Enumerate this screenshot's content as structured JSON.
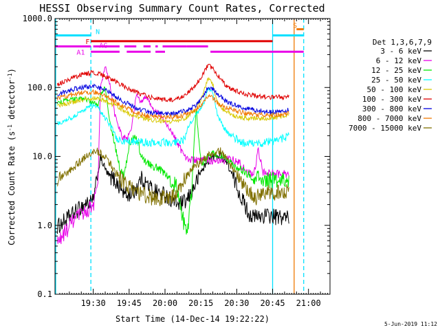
{
  "chart_data": {
    "type": "line",
    "title": "HESSI Observing Summary Count Rates, Corrected",
    "xlabel": "Start Time (14-Dec-14 19:22:22)",
    "ylabel_prefix": "Corrected Count Rate (s",
    "ylabel_sup1": "-1",
    "ylabel_mid": " detector",
    "ylabel_sup2": "-1",
    "ylabel_suffix": ")",
    "yscale": "log",
    "ylim": [
      0.1,
      1000
    ],
    "xlim_minutes": [
      -8,
      107
    ],
    "x_unit": "minutes after 19:22:22",
    "x_ticks": [
      {
        "m": 8,
        "label": "19:30"
      },
      {
        "m": 23,
        "label": "19:45"
      },
      {
        "m": 38,
        "label": "20:00"
      },
      {
        "m": 53,
        "label": "20:15"
      },
      {
        "m": 68,
        "label": "20:30"
      },
      {
        "m": 83,
        "label": "20:45"
      },
      {
        "m": 98,
        "label": "21:00"
      }
    ],
    "y_ticks": [
      {
        "v": 0.1,
        "label": "0.1"
      },
      {
        "v": 1,
        "label": "1.0"
      },
      {
        "v": 10,
        "label": "10.0"
      },
      {
        "v": 100,
        "label": "100.0"
      },
      {
        "v": 1000,
        "label": "1000.0"
      }
    ],
    "legend": {
      "header": "Det 1,3,6,7,9",
      "placement": "right",
      "entries": [
        {
          "name": "3 - 6 keV",
          "color": "#000000"
        },
        {
          "name": "6 - 12 keV",
          "color": "#e800e8"
        },
        {
          "name": "12 - 25 keV",
          "color": "#00e800"
        },
        {
          "name": "25 - 50 keV",
          "color": "#00ffff"
        },
        {
          "name": "50 - 100 keV",
          "color": "#d8c800"
        },
        {
          "name": "100 - 300 keV",
          "color": "#e00000"
        },
        {
          "name": "300 - 800 keV",
          "color": "#0000e0"
        },
        {
          "name": "800 - 7000 keV",
          "color": "#f07800"
        },
        {
          "name": "7000 - 15000 keV",
          "color": "#807000"
        }
      ]
    },
    "series": [
      {
        "name": "3 - 6 keV",
        "color": "#000000",
        "points": [
          [
            -7,
            0.95
          ],
          [
            5,
            2.1
          ],
          [
            8,
            2.2
          ],
          [
            11,
            9.5
          ],
          [
            14,
            5.5
          ],
          [
            17,
            4.5
          ],
          [
            20,
            3.2
          ],
          [
            22,
            2.7
          ],
          [
            25,
            3.0
          ],
          [
            28,
            4.8
          ],
          [
            31,
            3.8
          ],
          [
            35,
            3.0
          ],
          [
            38,
            2.8
          ],
          [
            41,
            2.3
          ],
          [
            44,
            2.0
          ],
          [
            47,
            2.2
          ],
          [
            50,
            3.5
          ],
          [
            53,
            6.0
          ],
          [
            57,
            9.5
          ],
          [
            61,
            10.5
          ],
          [
            64,
            8.0
          ],
          [
            67,
            4.5
          ],
          [
            70,
            2.5
          ],
          [
            73,
            1.5
          ],
          [
            75,
            1.3
          ],
          [
            80,
            1.4
          ],
          [
            85,
            1.3
          ],
          [
            90,
            1.3
          ]
        ]
      },
      {
        "name": "6 - 12 keV",
        "color": "#e800e8",
        "points": [
          [
            -7,
            0.55
          ],
          [
            0,
            1.2
          ],
          [
            5,
            1.6
          ],
          [
            8,
            2.0
          ],
          [
            10,
            4.0
          ],
          [
            11,
            100
          ],
          [
            13,
            200
          ],
          [
            15,
            110
          ],
          [
            17,
            40
          ],
          [
            20,
            20
          ],
          [
            22,
            17
          ],
          [
            24,
            25
          ],
          [
            26,
            80
          ],
          [
            28,
            60
          ],
          [
            30,
            75
          ],
          [
            33,
            50
          ],
          [
            36,
            40
          ],
          [
            40,
            25
          ],
          [
            45,
            12
          ],
          [
            48,
            9
          ],
          [
            52,
            8.5
          ],
          [
            55,
            9
          ],
          [
            58,
            8.8
          ],
          [
            62,
            9
          ],
          [
            66,
            9
          ],
          [
            69,
            8
          ],
          [
            72,
            6
          ],
          [
            75,
            5.5
          ],
          [
            77,
            12
          ],
          [
            79,
            6
          ],
          [
            85,
            5.5
          ],
          [
            90,
            5.5
          ]
        ]
      },
      {
        "name": "12 - 25 keV",
        "color": "#00e800",
        "points": [
          [
            -7,
            60
          ],
          [
            0,
            68
          ],
          [
            5,
            68
          ],
          [
            8,
            60
          ],
          [
            10,
            55
          ],
          [
            11,
            80
          ],
          [
            13,
            100
          ],
          [
            15,
            30
          ],
          [
            17,
            15
          ],
          [
            19,
            7
          ],
          [
            21,
            5
          ],
          [
            23,
            15
          ],
          [
            25,
            20
          ],
          [
            27,
            15
          ],
          [
            28,
            10
          ],
          [
            31,
            8
          ],
          [
            34,
            7
          ],
          [
            37,
            6
          ],
          [
            40,
            5
          ],
          [
            43,
            3.5
          ],
          [
            45,
            1.5
          ],
          [
            47,
            0.7
          ],
          [
            49,
            2.5
          ],
          [
            51,
            50
          ],
          [
            53,
            8
          ],
          [
            56,
            10
          ],
          [
            59,
            11
          ],
          [
            62,
            10
          ],
          [
            65,
            8
          ],
          [
            68,
            7
          ],
          [
            71,
            6
          ],
          [
            75,
            5
          ],
          [
            80,
            4.5
          ],
          [
            85,
            4.5
          ],
          [
            90,
            4.5
          ]
        ]
      },
      {
        "name": "25 - 50 keV",
        "color": "#00ffff",
        "points": [
          [
            -7,
            30
          ],
          [
            0,
            38
          ],
          [
            5,
            50
          ],
          [
            8,
            55
          ],
          [
            10,
            50
          ],
          [
            12,
            40
          ],
          [
            14,
            32
          ],
          [
            16,
            25
          ],
          [
            18,
            18
          ],
          [
            20,
            16
          ],
          [
            23,
            17
          ],
          [
            26,
            16
          ],
          [
            30,
            16
          ],
          [
            35,
            16
          ],
          [
            40,
            16
          ],
          [
            44,
            16
          ],
          [
            46,
            18
          ],
          [
            48,
            28
          ],
          [
            50,
            35
          ],
          [
            54,
            55
          ],
          [
            56,
            100
          ],
          [
            58,
            80
          ],
          [
            60,
            40
          ],
          [
            62,
            28
          ],
          [
            65,
            20
          ],
          [
            70,
            16
          ],
          [
            75,
            15
          ],
          [
            80,
            16
          ],
          [
            85,
            17
          ],
          [
            90,
            20
          ]
        ]
      },
      {
        "name": "50 - 100 keV",
        "color": "#d8c800",
        "points": [
          [
            -7,
            55
          ],
          [
            0,
            62
          ],
          [
            5,
            68
          ],
          [
            8,
            70
          ],
          [
            11,
            68
          ],
          [
            14,
            62
          ],
          [
            17,
            55
          ],
          [
            20,
            48
          ],
          [
            23,
            42
          ],
          [
            26,
            38
          ],
          [
            29,
            36
          ],
          [
            32,
            34
          ],
          [
            36,
            33
          ],
          [
            40,
            32
          ],
          [
            44,
            33
          ],
          [
            48,
            38
          ],
          [
            51,
            48
          ],
          [
            54,
            80
          ],
          [
            56,
            140
          ],
          [
            58,
            110
          ],
          [
            60,
            60
          ],
          [
            63,
            45
          ],
          [
            67,
            38
          ],
          [
            72,
            36
          ],
          [
            77,
            35
          ],
          [
            82,
            36
          ],
          [
            87,
            38
          ],
          [
            90,
            40
          ]
        ]
      },
      {
        "name": "100 - 300 keV",
        "color": "#e00000",
        "points": [
          [
            -7,
            110
          ],
          [
            0,
            140
          ],
          [
            5,
            160
          ],
          [
            8,
            165
          ],
          [
            11,
            155
          ],
          [
            14,
            140
          ],
          [
            17,
            125
          ],
          [
            20,
            108
          ],
          [
            23,
            95
          ],
          [
            26,
            85
          ],
          [
            29,
            78
          ],
          [
            32,
            72
          ],
          [
            36,
            68
          ],
          [
            40,
            66
          ],
          [
            44,
            70
          ],
          [
            48,
            85
          ],
          [
            51,
            110
          ],
          [
            54,
            160
          ],
          [
            56,
            210
          ],
          [
            58,
            190
          ],
          [
            60,
            150
          ],
          [
            63,
            110
          ],
          [
            67,
            90
          ],
          [
            72,
            80
          ],
          [
            77,
            75
          ],
          [
            82,
            72
          ],
          [
            87,
            72
          ],
          [
            90,
            75
          ]
        ]
      },
      {
        "name": "300 - 800 keV",
        "color": "#0000e0",
        "points": [
          [
            -7,
            80
          ],
          [
            0,
            95
          ],
          [
            5,
            102
          ],
          [
            8,
            104
          ],
          [
            11,
            98
          ],
          [
            14,
            88
          ],
          [
            17,
            76
          ],
          [
            20,
            65
          ],
          [
            23,
            57
          ],
          [
            26,
            50
          ],
          [
            29,
            46
          ],
          [
            32,
            43
          ],
          [
            36,
            42
          ],
          [
            40,
            42
          ],
          [
            44,
            43
          ],
          [
            48,
            48
          ],
          [
            51,
            55
          ],
          [
            54,
            75
          ],
          [
            56,
            100
          ],
          [
            58,
            95
          ],
          [
            60,
            80
          ],
          [
            63,
            65
          ],
          [
            67,
            56
          ],
          [
            72,
            50
          ],
          [
            77,
            46
          ],
          [
            82,
            44
          ],
          [
            87,
            44
          ],
          [
            90,
            48
          ]
        ]
      },
      {
        "name": "800 - 7000 keV",
        "color": "#f07800",
        "points": [
          [
            -7,
            70
          ],
          [
            0,
            80
          ],
          [
            5,
            85
          ],
          [
            8,
            86
          ],
          [
            11,
            80
          ],
          [
            14,
            72
          ],
          [
            17,
            63
          ],
          [
            20,
            55
          ],
          [
            23,
            48
          ],
          [
            26,
            43
          ],
          [
            29,
            40
          ],
          [
            32,
            38
          ],
          [
            36,
            37
          ],
          [
            40,
            37
          ],
          [
            44,
            38
          ],
          [
            48,
            42
          ],
          [
            51,
            48
          ],
          [
            54,
            60
          ],
          [
            56,
            75
          ],
          [
            58,
            70
          ],
          [
            60,
            60
          ],
          [
            63,
            52
          ],
          [
            67,
            46
          ],
          [
            72,
            42
          ],
          [
            77,
            40
          ],
          [
            82,
            40
          ],
          [
            87,
            40
          ],
          [
            90,
            42
          ]
        ]
      },
      {
        "name": "7000 - 15000 keV",
        "color": "#807000",
        "points": [
          [
            -7,
            4.5
          ],
          [
            0,
            7
          ],
          [
            5,
            10
          ],
          [
            8,
            12
          ],
          [
            11,
            11.5
          ],
          [
            14,
            9
          ],
          [
            17,
            6
          ],
          [
            20,
            4.5
          ],
          [
            23,
            3.5
          ],
          [
            27,
            3.0
          ],
          [
            30,
            2.7
          ],
          [
            33,
            2.5
          ],
          [
            36,
            2.5
          ],
          [
            40,
            2.6
          ],
          [
            43,
            3.0
          ],
          [
            46,
            4.5
          ],
          [
            50,
            7
          ],
          [
            54,
            9
          ],
          [
            57,
            11
          ],
          [
            61,
            12
          ],
          [
            64,
            9
          ],
          [
            67,
            6
          ],
          [
            70,
            4
          ],
          [
            73,
            3.0
          ],
          [
            76,
            2.5
          ],
          [
            80,
            3.0
          ],
          [
            85,
            3.0
          ],
          [
            90,
            3.2
          ]
        ]
      }
    ],
    "vertical_markers": [
      {
        "m": -8,
        "color": "#00e0ff",
        "style": "solid"
      },
      {
        "m": 7,
        "color": "#00e0ff",
        "style": "dashed"
      },
      {
        "m": 83,
        "color": "#00e0ff",
        "style": "solid"
      },
      {
        "m": 92,
        "color": "#f07800",
        "style": "solid"
      },
      {
        "m": 96,
        "color": "#00e0ff",
        "style": "dashed"
      }
    ],
    "flags": [
      {
        "label": "N",
        "color": "#00e0ff",
        "y": 570,
        "segments": [
          [
            -8,
            7
          ],
          [
            83,
            96
          ]
        ]
      },
      {
        "label": "S",
        "color": "#f07800",
        "y": 700,
        "segments": [
          [
            93,
            96
          ]
        ]
      },
      {
        "label": "F",
        "color": "#e00000",
        "y": 470,
        "segments": [
          [
            7,
            83
          ]
        ]
      },
      {
        "label": "AG",
        "color": "#e800e8",
        "y": 395,
        "segments": [
          [
            -8,
            7
          ],
          [
            8,
            19
          ],
          [
            21,
            26
          ],
          [
            29,
            32
          ],
          [
            34,
            35
          ],
          [
            37,
            47
          ],
          [
            47,
            56
          ]
        ]
      },
      {
        "label": "A1",
        "color": "#e800e8",
        "y": 330,
        "segments": [
          [
            7,
            19
          ],
          [
            22,
            32
          ],
          [
            34,
            38
          ],
          [
            57,
            96
          ]
        ]
      }
    ],
    "timestamp": "5-Jun-2019 11:12"
  }
}
